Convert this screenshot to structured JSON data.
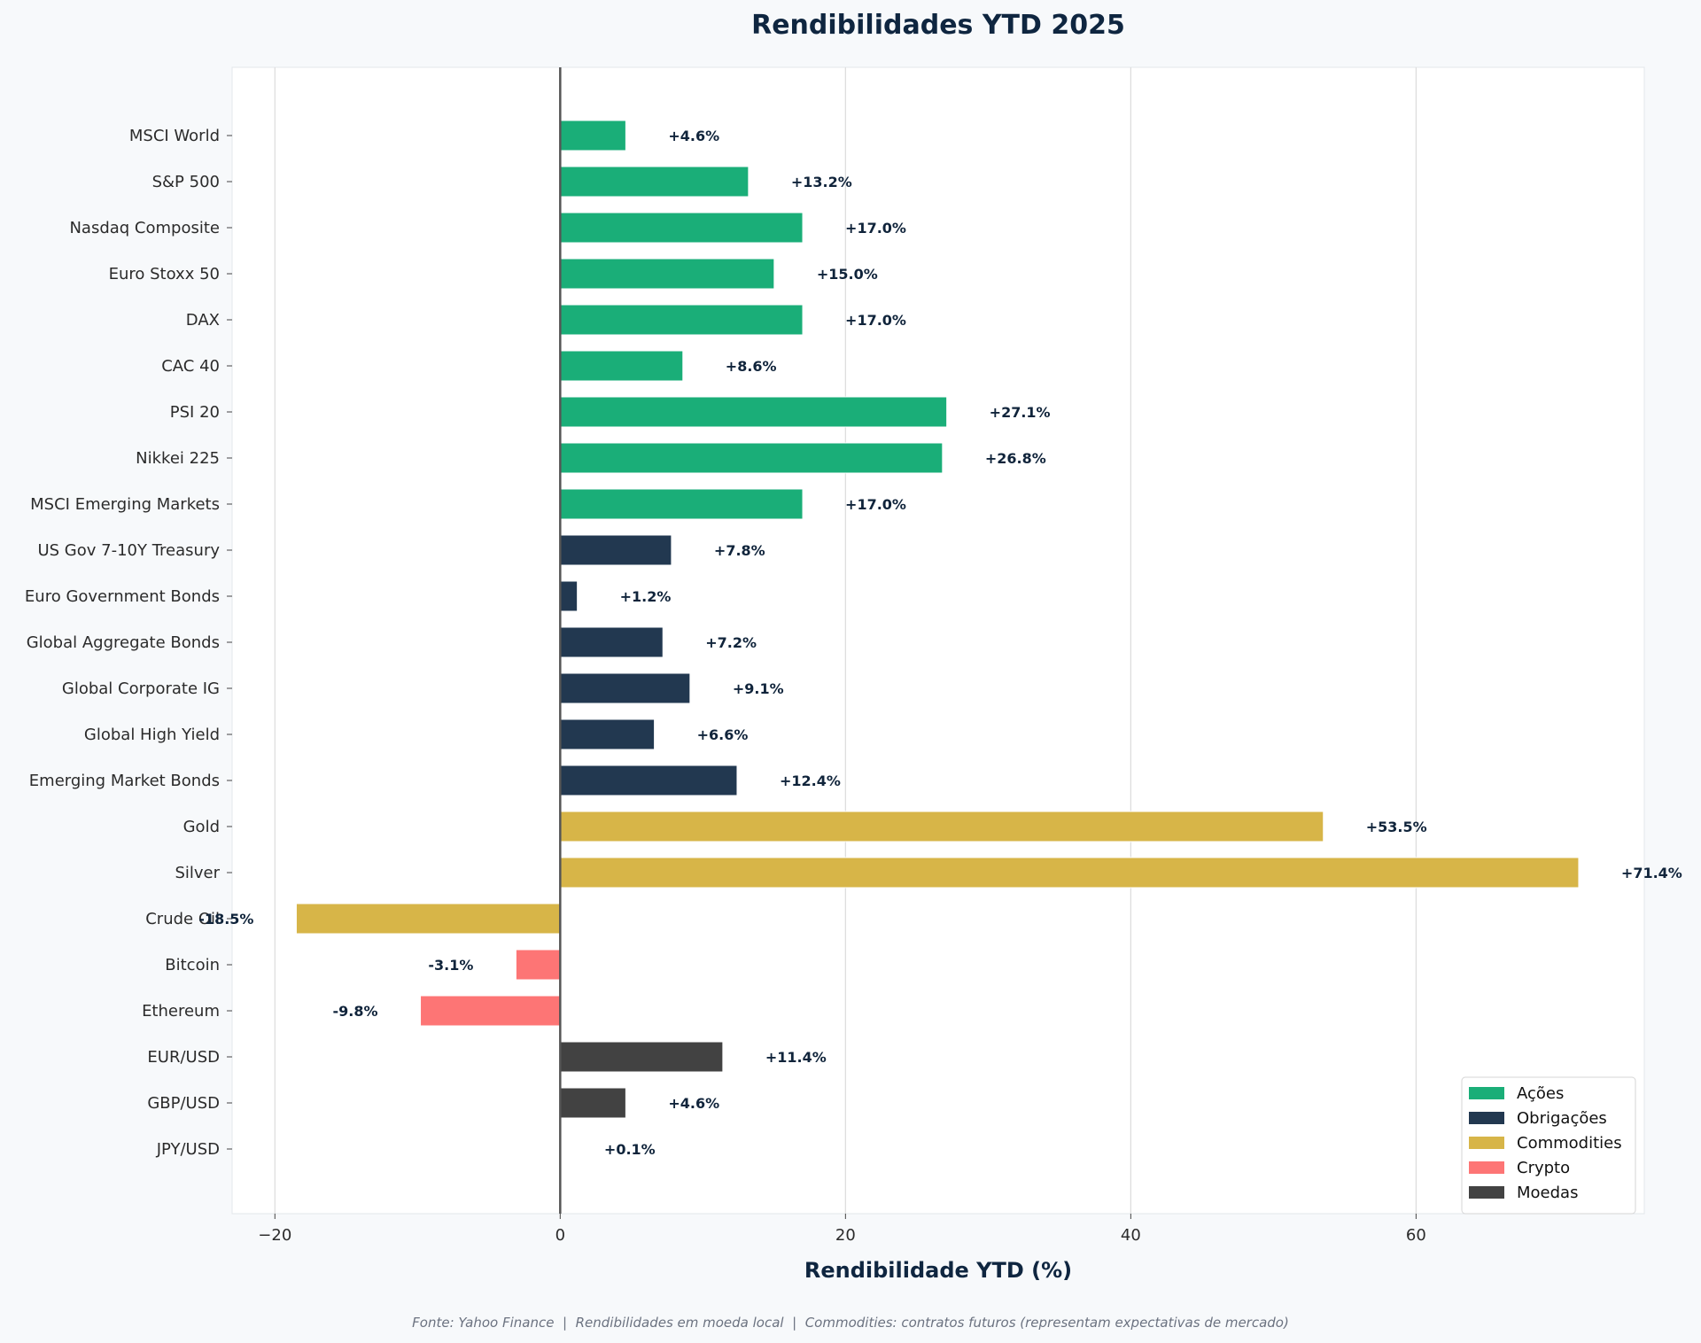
{
  "chart_data": {
    "type": "bar",
    "orientation": "horizontal",
    "title": "Rendibilidades YTD 2025",
    "xlabel": "Rendibilidade YTD (%)",
    "ylabel": "",
    "xlim": [
      -23,
      76
    ],
    "xticks": [
      -20,
      0,
      20,
      40,
      60
    ],
    "xtick_labels": [
      "−20",
      "0",
      "20",
      "40",
      "60"
    ],
    "grid": "vertical",
    "legend_position": "bottom-right",
    "categories": [
      "MSCI World",
      "S&P 500",
      "Nasdaq Composite",
      "Euro Stoxx 50",
      "DAX",
      "CAC 40",
      "PSI 20",
      "Nikkei 225",
      "MSCI Emerging Markets",
      "US Gov 7-10Y Treasury",
      "Euro Government Bonds",
      "Global Aggregate Bonds",
      "Global Corporate IG",
      "Global High Yield",
      "Emerging Market Bonds",
      "Gold",
      "Silver",
      "Crude Oil",
      "Bitcoin",
      "Ethereum",
      "EUR/USD",
      "GBP/USD",
      "JPY/USD"
    ],
    "values": [
      4.6,
      13.2,
      17.0,
      15.0,
      17.0,
      8.6,
      27.1,
      26.8,
      17.0,
      7.8,
      1.2,
      7.2,
      9.1,
      6.6,
      12.4,
      53.5,
      71.4,
      -18.5,
      -3.1,
      -9.8,
      11.4,
      4.6,
      0.1
    ],
    "value_labels": [
      "+4.6%",
      "+13.2%",
      "+17.0%",
      "+15.0%",
      "+17.0%",
      "+8.6%",
      "+27.1%",
      "+26.8%",
      "+17.0%",
      "+7.8%",
      "+1.2%",
      "+7.2%",
      "+9.1%",
      "+6.6%",
      "+12.4%",
      "+53.5%",
      "+71.4%",
      "-18.5%",
      "-3.1%",
      "-9.8%",
      "+11.4%",
      "+4.6%",
      "+0.1%"
    ],
    "groups": [
      "Ações",
      "Ações",
      "Ações",
      "Ações",
      "Ações",
      "Ações",
      "Ações",
      "Ações",
      "Ações",
      "Obrigações",
      "Obrigações",
      "Obrigações",
      "Obrigações",
      "Obrigações",
      "Obrigações",
      "Commodities",
      "Commodities",
      "Commodities",
      "Crypto",
      "Crypto",
      "Moedas",
      "Moedas",
      "Moedas"
    ],
    "legend": [
      {
        "name": "Ações",
        "color": "#1aae78"
      },
      {
        "name": "Obrigações",
        "color": "#223850"
      },
      {
        "name": "Commodities",
        "color": "#d7b548"
      },
      {
        "name": "Crypto",
        "color": "#fd7575"
      },
      {
        "name": "Moedas",
        "color": "#424242"
      }
    ],
    "footer": "Fonte: Yahoo Finance  |  Rendibilidades em moeda local  |  Commodities: contratos futuros (representam expectativas de mercado)"
  }
}
